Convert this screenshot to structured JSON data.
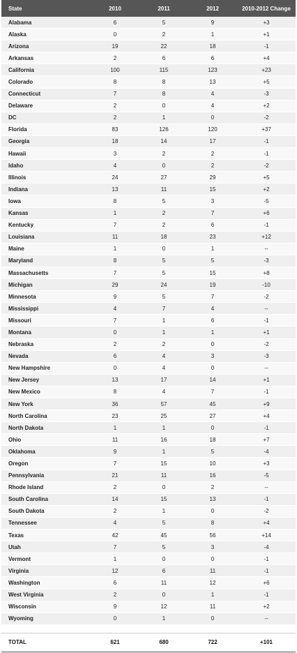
{
  "header": {
    "state": "State",
    "y2010": "2010",
    "y2011": "2011",
    "y2012": "2012",
    "change": "2010-2012 Change"
  },
  "rows": [
    {
      "state": "Alabama",
      "y2010": "6",
      "y2011": "5",
      "y2012": "9",
      "change": "+3"
    },
    {
      "state": "Alaska",
      "y2010": "0",
      "y2011": "2",
      "y2012": "1",
      "change": "+1"
    },
    {
      "state": "Arizona",
      "y2010": "19",
      "y2011": "22",
      "y2012": "18",
      "change": "-1"
    },
    {
      "state": "Arkansas",
      "y2010": "2",
      "y2011": "6",
      "y2012": "6",
      "change": "+4"
    },
    {
      "state": "California",
      "y2010": "100",
      "y2011": "115",
      "y2012": "123",
      "change": "+23"
    },
    {
      "state": "Colorado",
      "y2010": "8",
      "y2011": "8",
      "y2012": "13",
      "change": "+5"
    },
    {
      "state": "Connecticut",
      "y2010": "7",
      "y2011": "8",
      "y2012": "4",
      "change": "-3"
    },
    {
      "state": "Delaware",
      "y2010": "2",
      "y2011": "0",
      "y2012": "4",
      "change": "+2"
    },
    {
      "state": "DC",
      "y2010": "2",
      "y2011": "1",
      "y2012": "0",
      "change": "-2"
    },
    {
      "state": "Florida",
      "y2010": "83",
      "y2011": "126",
      "y2012": "120",
      "change": "+37"
    },
    {
      "state": "Georgia",
      "y2010": "18",
      "y2011": "14",
      "y2012": "17",
      "change": "-1"
    },
    {
      "state": "Hawaii",
      "y2010": "3",
      "y2011": "2",
      "y2012": "2",
      "change": "-1"
    },
    {
      "state": "Idaho",
      "y2010": "4",
      "y2011": "0",
      "y2012": "2",
      "change": "-2"
    },
    {
      "state": "Illinois",
      "y2010": "24",
      "y2011": "27",
      "y2012": "29",
      "change": "+5"
    },
    {
      "state": "Indiana",
      "y2010": "13",
      "y2011": "11",
      "y2012": "15",
      "change": "+2"
    },
    {
      "state": "Iowa",
      "y2010": "8",
      "y2011": "5",
      "y2012": "3",
      "change": "-5"
    },
    {
      "state": "Kansas",
      "y2010": "1",
      "y2011": "2",
      "y2012": "7",
      "change": "+6"
    },
    {
      "state": "Kentucky",
      "y2010": "7",
      "y2011": "2",
      "y2012": "6",
      "change": "-1"
    },
    {
      "state": "Louisiana",
      "y2010": "11",
      "y2011": "18",
      "y2012": "23",
      "change": "+12"
    },
    {
      "state": "Maine",
      "y2010": "1",
      "y2011": "0",
      "y2012": "1",
      "change": "--"
    },
    {
      "state": "Maryland",
      "y2010": "8",
      "y2011": "5",
      "y2012": "5",
      "change": "-3"
    },
    {
      "state": "Massachusetts",
      "y2010": "7",
      "y2011": "5",
      "y2012": "15",
      "change": "+8"
    },
    {
      "state": "Michigan",
      "y2010": "29",
      "y2011": "24",
      "y2012": "19",
      "change": "-10"
    },
    {
      "state": "Minnesota",
      "y2010": "9",
      "y2011": "5",
      "y2012": "7",
      "change": "-2"
    },
    {
      "state": "Mississippi",
      "y2010": "4",
      "y2011": "7",
      "y2012": "4",
      "change": "--"
    },
    {
      "state": "Missouri",
      "y2010": "7",
      "y2011": "1",
      "y2012": "6",
      "change": "-1"
    },
    {
      "state": "Montana",
      "y2010": "0",
      "y2011": "1",
      "y2012": "1",
      "change": "+1"
    },
    {
      "state": "Nebraska",
      "y2010": "2",
      "y2011": "2",
      "y2012": "0",
      "change": "-2"
    },
    {
      "state": "Nevada",
      "y2010": "6",
      "y2011": "4",
      "y2012": "3",
      "change": "-3"
    },
    {
      "state": "New Hampshire",
      "y2010": "0",
      "y2011": "4",
      "y2012": "0",
      "change": "--"
    },
    {
      "state": "New Jersey",
      "y2010": "13",
      "y2011": "17",
      "y2012": "14",
      "change": "+1"
    },
    {
      "state": "New Mexico",
      "y2010": "8",
      "y2011": "4",
      "y2012": "7",
      "change": "-1"
    },
    {
      "state": "New York",
      "y2010": "36",
      "y2011": "57",
      "y2012": "45",
      "change": "+9"
    },
    {
      "state": "North Carolina",
      "y2010": "23",
      "y2011": "25",
      "y2012": "27",
      "change": "+4"
    },
    {
      "state": "North Dakota",
      "y2010": "1",
      "y2011": "1",
      "y2012": "0",
      "change": "-1"
    },
    {
      "state": "Ohio",
      "y2010": "11",
      "y2011": "16",
      "y2012": "18",
      "change": "+7"
    },
    {
      "state": "Oklahoma",
      "y2010": "9",
      "y2011": "1",
      "y2012": "5",
      "change": "-4"
    },
    {
      "state": "Oregon",
      "y2010": "7",
      "y2011": "15",
      "y2012": "10",
      "change": "+3"
    },
    {
      "state": "Pennsylvania",
      "y2010": "21",
      "y2011": "11",
      "y2012": "16",
      "change": "-5"
    },
    {
      "state": "Rhode Island",
      "y2010": "2",
      "y2011": "0",
      "y2012": "2",
      "change": "--"
    },
    {
      "state": "South Carolina",
      "y2010": "14",
      "y2011": "15",
      "y2012": "13",
      "change": "-1"
    },
    {
      "state": "South Dakota",
      "y2010": "2",
      "y2011": "1",
      "y2012": "0",
      "change": "-2"
    },
    {
      "state": "Tennessee",
      "y2010": "4",
      "y2011": "5",
      "y2012": "8",
      "change": "+4"
    },
    {
      "state": "Texas",
      "y2010": "42",
      "y2011": "45",
      "y2012": "56",
      "change": "+14"
    },
    {
      "state": "Utah",
      "y2010": "7",
      "y2011": "5",
      "y2012": "3",
      "change": "-4"
    },
    {
      "state": "Vermont",
      "y2010": "1",
      "y2011": "0",
      "y2012": "0",
      "change": "-1"
    },
    {
      "state": "Virginia",
      "y2010": "12",
      "y2011": "6",
      "y2012": "11",
      "change": "-1"
    },
    {
      "state": "Washington",
      "y2010": "6",
      "y2011": "11",
      "y2012": "12",
      "change": "+6"
    },
    {
      "state": "West Virginia",
      "y2010": "2",
      "y2011": "0",
      "y2012": "1",
      "change": "-1"
    },
    {
      "state": "Wisconsin",
      "y2010": "9",
      "y2011": "12",
      "y2012": "11",
      "change": "+2"
    },
    {
      "state": "Wyoming",
      "y2010": "0",
      "y2011": "1",
      "y2012": "0",
      "change": "--"
    }
  ],
  "total": {
    "label": "TOTAL",
    "y2010": "621",
    "y2011": "680",
    "y2012": "722",
    "change": "+101"
  },
  "colors": {
    "header_bg": "#565656",
    "row_odd": "#efefef",
    "row_even": "#f8f8f8"
  }
}
